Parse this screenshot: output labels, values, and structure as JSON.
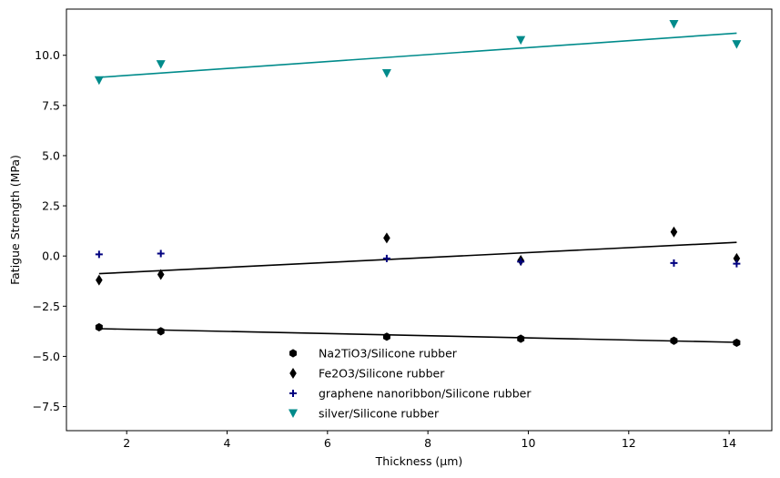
{
  "chart_data": {
    "type": "scatter",
    "title": "",
    "xlabel": "Thickness (µm)",
    "ylabel": "Fatigue Strength (MPa)",
    "xlim": [
      0.8,
      14.85
    ],
    "ylim": [
      -8.7,
      12.3
    ],
    "xticks": [
      2,
      4,
      6,
      8,
      10,
      12,
      14
    ],
    "xtick_labels": [
      "2",
      "4",
      "6",
      "8",
      "10",
      "12",
      "14"
    ],
    "yticks": [
      -7.5,
      -5.0,
      -2.5,
      0.0,
      2.5,
      5.0,
      7.5,
      10.0
    ],
    "ytick_labels": [
      "−7.5",
      "−5.0",
      "−2.5",
      "0.0",
      "2.5",
      "5.0",
      "7.5",
      "10.0"
    ],
    "grid": false,
    "legend_position": "lower-center",
    "x": [
      1.45,
      2.68,
      7.18,
      9.85,
      12.9,
      14.15
    ],
    "series": [
      {
        "name": "Na2TiO3/Silicone rubber",
        "marker": "hexagon",
        "color": "#000000",
        "values": [
          -3.55,
          -3.75,
          -4.02,
          -4.12,
          -4.22,
          -4.32
        ],
        "fit": [
          -3.62,
          -4.3
        ]
      },
      {
        "name": "Fe2O3/Silicone rubber",
        "marker": "thin-diamond",
        "color": "#000000",
        "values": [
          -1.2,
          -0.92,
          0.9,
          -0.22,
          1.2,
          -0.12
        ],
        "fit": [
          -0.88,
          0.68
        ]
      },
      {
        "name": "graphene nanoribbon/Silicone rubber",
        "marker": "plus",
        "color": "#000080",
        "values": [
          0.08,
          0.12,
          -0.12,
          -0.28,
          -0.35,
          -0.38
        ],
        "fit": null
      },
      {
        "name": "silver/Silicone rubber",
        "marker": "triangle-down",
        "color": "#008b8b",
        "values": [
          8.75,
          9.55,
          9.1,
          10.75,
          11.55,
          10.55
        ],
        "fit": [
          8.9,
          11.1
        ]
      }
    ]
  }
}
